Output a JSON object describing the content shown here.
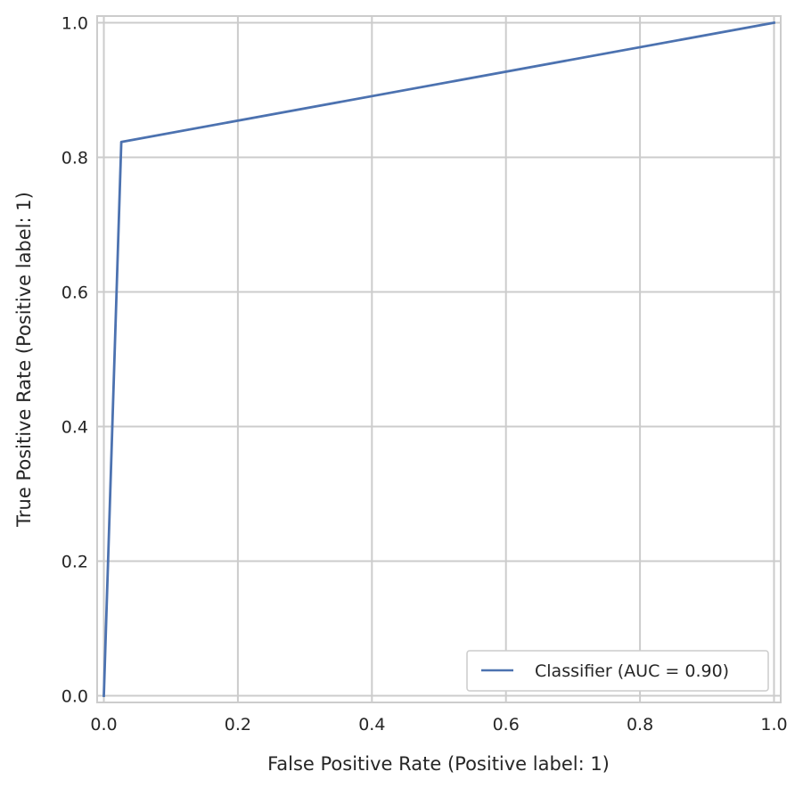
{
  "chart_data": {
    "type": "line",
    "xlabel": "False Positive Rate (Positive label: 1)",
    "ylabel": "True Positive Rate (Positive label: 1)",
    "xlim": [
      -0.01,
      1.01
    ],
    "ylim": [
      -0.01,
      1.01
    ],
    "x_ticks": [
      "0.0",
      "0.2",
      "0.4",
      "0.6",
      "0.8",
      "1.0"
    ],
    "y_ticks": [
      "0.0",
      "0.2",
      "0.4",
      "0.6",
      "0.8",
      "1.0"
    ],
    "grid": true,
    "legend_position": "lower-right",
    "series": [
      {
        "name": "Classifier (AUC = 0.90)",
        "color": "#4c72b0",
        "x": [
          0.0,
          0.026,
          1.0
        ],
        "y": [
          0.0,
          0.823,
          1.0
        ]
      }
    ]
  }
}
